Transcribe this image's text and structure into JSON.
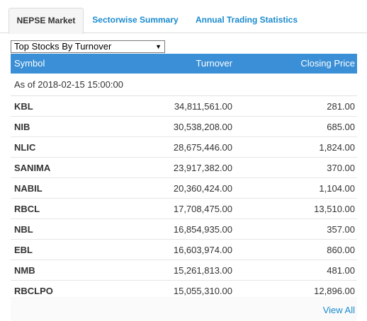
{
  "tabs": [
    {
      "label": "NEPSE Market"
    },
    {
      "label": "Sectorwise Summary"
    },
    {
      "label": "Annual Trading Statistics"
    }
  ],
  "dropdown": {
    "selected": "Top Stocks By Turnover"
  },
  "table": {
    "headers": {
      "symbol": "Symbol",
      "turnover": "Turnover",
      "closing": "Closing Price"
    },
    "as_of": "As of 2018-02-15 15:00:00",
    "rows": [
      {
        "symbol": "KBL",
        "turnover": "34,811,561.00",
        "closing": "281.00"
      },
      {
        "symbol": "NIB",
        "turnover": "30,538,208.00",
        "closing": "685.00"
      },
      {
        "symbol": "NLIC",
        "turnover": "28,675,446.00",
        "closing": "1,824.00"
      },
      {
        "symbol": "SANIMA",
        "turnover": "23,917,382.00",
        "closing": "370.00"
      },
      {
        "symbol": "NABIL",
        "turnover": "20,360,424.00",
        "closing": "1,104.00"
      },
      {
        "symbol": "RBCL",
        "turnover": "17,708,475.00",
        "closing": "13,510.00"
      },
      {
        "symbol": "NBL",
        "turnover": "16,854,935.00",
        "closing": "357.00"
      },
      {
        "symbol": "EBL",
        "turnover": "16,603,974.00",
        "closing": "860.00"
      },
      {
        "symbol": "NMB",
        "turnover": "15,261,813.00",
        "closing": "481.00"
      },
      {
        "symbol": "RBCLPO",
        "turnover": "15,055,310.00",
        "closing": "12,896.00"
      }
    ]
  },
  "footer": {
    "view_all": "View All"
  },
  "colors": {
    "accent": "#1a8bce",
    "header_bg": "#3a8fd6"
  }
}
